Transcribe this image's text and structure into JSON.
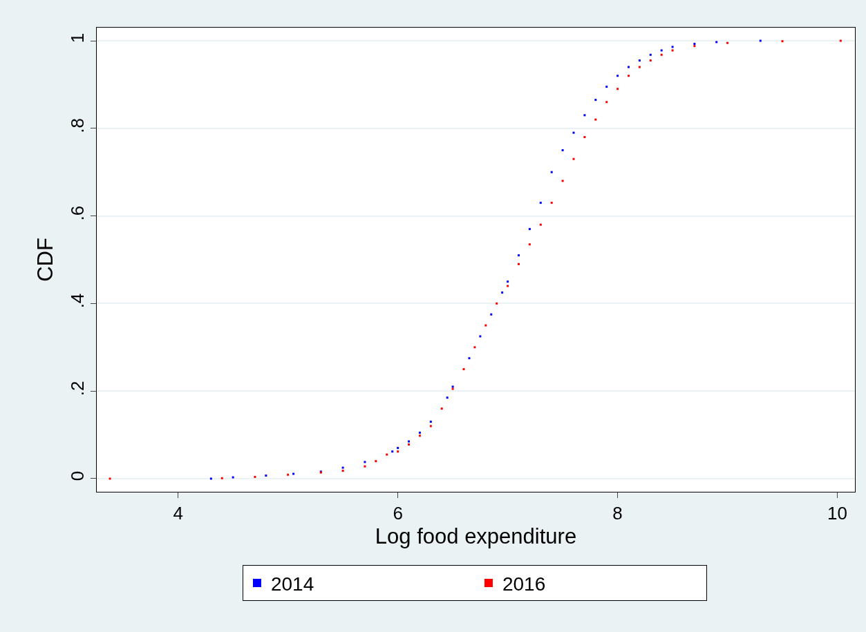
{
  "chart_data": {
    "type": "scatter",
    "xlabel": "Log food expenditure",
    "ylabel": "CDF",
    "marker": "square",
    "grid": "y",
    "legend": "bottom",
    "xlim": [
      3.26,
      10.16
    ],
    "ylim": [
      -0.03,
      1.03
    ],
    "xticks": [
      4,
      6,
      8,
      10
    ],
    "yticks": [
      0,
      {
        "value": 0.2,
        "label": ".2"
      },
      {
        "value": 0.4,
        "label": ".4"
      },
      {
        "value": 0.6,
        "label": ".6"
      },
      {
        "value": 0.8,
        "label": ".8"
      },
      {
        "value": 1,
        "label": "1"
      }
    ],
    "series": [
      {
        "name": "2014",
        "color": "#0000ff",
        "x": [
          4.3,
          4.5,
          4.8,
          5.05,
          5.3,
          5.5,
          5.7,
          5.95,
          6.0,
          6.1,
          6.2,
          6.3,
          6.45,
          6.5,
          6.65,
          6.75,
          6.85,
          6.95,
          7.0,
          7.1,
          7.2,
          7.3,
          7.4,
          7.5,
          7.6,
          7.7,
          7.8,
          7.9,
          8.0,
          8.1,
          8.2,
          8.3,
          8.4,
          8.5,
          8.7,
          8.9,
          9.3
        ],
        "values": [
          0.0,
          0.003,
          0.007,
          0.011,
          0.016,
          0.025,
          0.038,
          0.062,
          0.07,
          0.085,
          0.105,
          0.13,
          0.185,
          0.21,
          0.275,
          0.325,
          0.375,
          0.425,
          0.45,
          0.51,
          0.57,
          0.63,
          0.7,
          0.75,
          0.79,
          0.83,
          0.865,
          0.895,
          0.92,
          0.94,
          0.955,
          0.968,
          0.978,
          0.986,
          0.993,
          0.997,
          1.0
        ]
      },
      {
        "name": "2016",
        "color": "#ff0000",
        "x": [
          3.38,
          4.4,
          4.7,
          5.0,
          5.3,
          5.5,
          5.7,
          5.8,
          5.9,
          6.0,
          6.1,
          6.2,
          6.3,
          6.4,
          6.5,
          6.6,
          6.7,
          6.8,
          6.9,
          7.0,
          7.1,
          7.2,
          7.3,
          7.4,
          7.5,
          7.6,
          7.7,
          7.8,
          7.9,
          8.0,
          8.1,
          8.2,
          8.3,
          8.4,
          8.5,
          8.7,
          9.0,
          9.5,
          10.03
        ],
        "values": [
          0.0,
          0.001,
          0.004,
          0.009,
          0.014,
          0.018,
          0.028,
          0.04,
          0.055,
          0.062,
          0.078,
          0.098,
          0.12,
          0.16,
          0.205,
          0.25,
          0.3,
          0.35,
          0.4,
          0.44,
          0.49,
          0.535,
          0.58,
          0.63,
          0.68,
          0.73,
          0.78,
          0.82,
          0.86,
          0.89,
          0.92,
          0.94,
          0.955,
          0.968,
          0.978,
          0.988,
          0.995,
          0.999,
          1.0
        ]
      }
    ]
  }
}
